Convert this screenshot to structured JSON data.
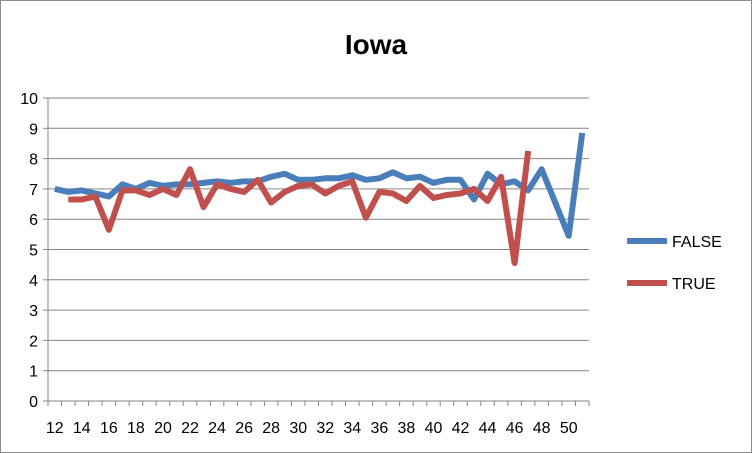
{
  "chart_data": {
    "type": "line",
    "title": "Iowa",
    "xlabel": "",
    "ylabel": "",
    "x": [
      12,
      13,
      14,
      15,
      16,
      17,
      18,
      19,
      20,
      21,
      22,
      23,
      24,
      25,
      26,
      27,
      28,
      29,
      30,
      31,
      32,
      33,
      34,
      35,
      36,
      37,
      38,
      39,
      40,
      41,
      42,
      43,
      44,
      45,
      46,
      47,
      48,
      49,
      50,
      51
    ],
    "x_ticks": [
      12,
      14,
      16,
      18,
      20,
      22,
      24,
      26,
      28,
      30,
      32,
      34,
      36,
      38,
      40,
      42,
      44,
      46,
      48,
      50
    ],
    "xlim": [
      11.5,
      51.5
    ],
    "ylim": [
      0,
      10
    ],
    "y_ticks": [
      0,
      1,
      2,
      3,
      4,
      5,
      6,
      7,
      8,
      9,
      10
    ],
    "grid": true,
    "legend_position": "right",
    "series": [
      {
        "name": "FALSE",
        "color": "#4a7ebb",
        "values": [
          7.0,
          6.9,
          6.95,
          6.85,
          6.75,
          7.15,
          7.0,
          7.2,
          7.1,
          7.15,
          7.15,
          7.2,
          7.25,
          7.2,
          7.25,
          7.25,
          7.4,
          7.5,
          7.3,
          7.3,
          7.35,
          7.35,
          7.45,
          7.3,
          7.35,
          7.55,
          7.35,
          7.4,
          7.2,
          7.3,
          7.3,
          6.65,
          7.5,
          7.15,
          7.25,
          6.95,
          7.65,
          6.55,
          5.45,
          8.85
        ]
      },
      {
        "name": "TRUE",
        "color": "#c0504d",
        "values": [
          null,
          6.65,
          6.65,
          6.75,
          5.65,
          6.95,
          6.95,
          6.8,
          7.0,
          6.8,
          7.65,
          6.4,
          7.15,
          7.0,
          6.9,
          7.3,
          6.55,
          6.9,
          7.1,
          7.15,
          6.85,
          7.1,
          7.25,
          6.05,
          6.9,
          6.85,
          6.6,
          7.1,
          6.7,
          6.8,
          6.85,
          7.0,
          6.6,
          7.4,
          4.55,
          8.25,
          null,
          null,
          null,
          null
        ]
      }
    ]
  }
}
